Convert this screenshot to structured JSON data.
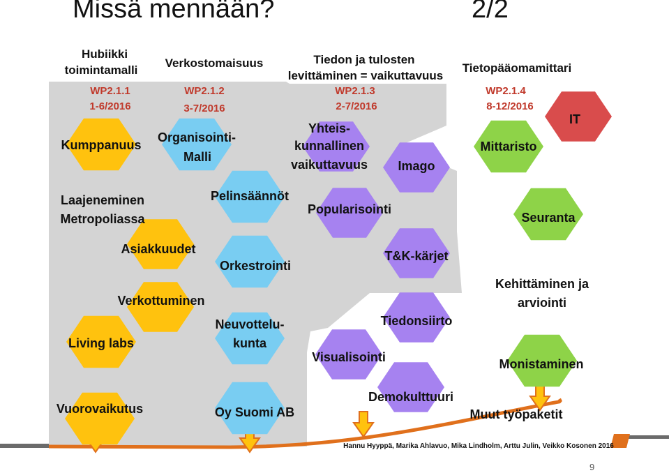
{
  "slide": {
    "title": "Missä mennään?",
    "counter": "2/2",
    "page_number": "9"
  },
  "colors": {
    "yellow": "#ffc20e",
    "blue": "#79cdf2",
    "purple": "#a682f0",
    "green": "#8ed348",
    "red": "#d94c4c",
    "gray": "#d4d4d4",
    "arrow": "#e0701c"
  },
  "columns": [
    {
      "header": [
        "Hubiikki",
        "toimintamalli"
      ],
      "wp": [
        "WP2.1.1",
        "1-6/2016"
      ]
    },
    {
      "header": [
        "Verkostomaisuus"
      ],
      "wp": [
        "WP2.1.2",
        "3-7/2016"
      ]
    },
    {
      "header": [
        "Tiedon ja tulosten",
        "levittäminen = vaikuttavuus"
      ],
      "wp": [
        "WP2.1.3",
        "2-7/2016"
      ]
    },
    {
      "header": [
        "Tietopääomamittari"
      ],
      "wp": [
        "WP2.1.4",
        "8-12/2016"
      ]
    }
  ],
  "labels": {
    "kumppanuus": "Kumppanuus",
    "laajeneminen": [
      "Laajeneminen",
      "Metropoliassa"
    ],
    "asiakkuudet": "Asiakkuudet",
    "verkottuminen": "Verkottuminen",
    "living_labs": "Living labs",
    "vuorovaikutus": "Vuorovaikutus",
    "organisointi": [
      "Organisointi-",
      "Malli"
    ],
    "pelinsaannot": "Pelinsäännöt",
    "orkestrointi": "Orkestrointi",
    "neuvottelukunta": [
      "Neuvottelu-",
      "kunta"
    ],
    "oy_suomi": "Oy Suomi AB",
    "yhteiskunnallinen": [
      "Yhteis-",
      "kunnallinen",
      "vaikuttavuus"
    ],
    "imago": "Imago",
    "popularisointi": "Popularisointi",
    "tk_karjet": "T&K-kärjet",
    "tiedonsiirto": "Tiedonsiirto",
    "visualisointi": "Visualisointi",
    "demokulttuuri": "Demokulttuuri",
    "it": "IT",
    "mittaristo": "Mittaristo",
    "seuranta": "Seuranta",
    "kehittaminen": [
      "Kehittäminen ja",
      "arviointi"
    ],
    "monistaminen": "Monistaminen",
    "muut": "Muut työpaketit"
  },
  "credits": "Hannu Hyyppä, Marika Ahlavuo, Mika Lindholm, Arttu Julin, Veikko Kosonen 2016"
}
